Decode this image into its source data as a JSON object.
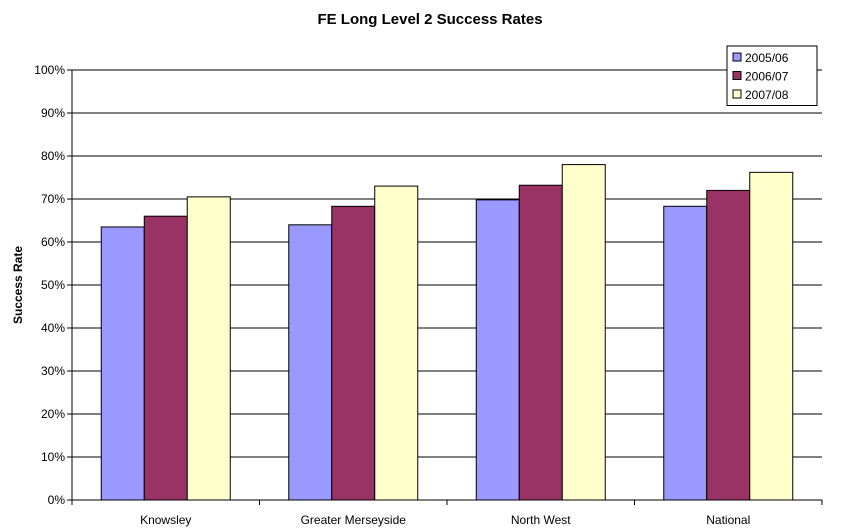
{
  "chart_data": {
    "type": "bar",
    "title": "FE Long Level 2 Success Rates",
    "xlabel": "",
    "ylabel": "Success Rate",
    "ylim": [
      0,
      100
    ],
    "yticks": [
      "0%",
      "10%",
      "20%",
      "30%",
      "40%",
      "50%",
      "60%",
      "70%",
      "80%",
      "90%",
      "100%"
    ],
    "grid": true,
    "legend_position": "top-right",
    "categories": [
      "Knowsley",
      "Greater Merseyside",
      "North West",
      "National"
    ],
    "series": [
      {
        "name": "2005/06",
        "color": "#9999ff",
        "values": [
          63.5,
          64,
          69.8,
          68.3
        ]
      },
      {
        "name": "2006/07",
        "color": "#993366",
        "values": [
          66,
          68.3,
          73.2,
          72
        ]
      },
      {
        "name": "2007/08",
        "color": "#ffffcc",
        "values": [
          70.5,
          73,
          78,
          76.2
        ]
      }
    ]
  }
}
